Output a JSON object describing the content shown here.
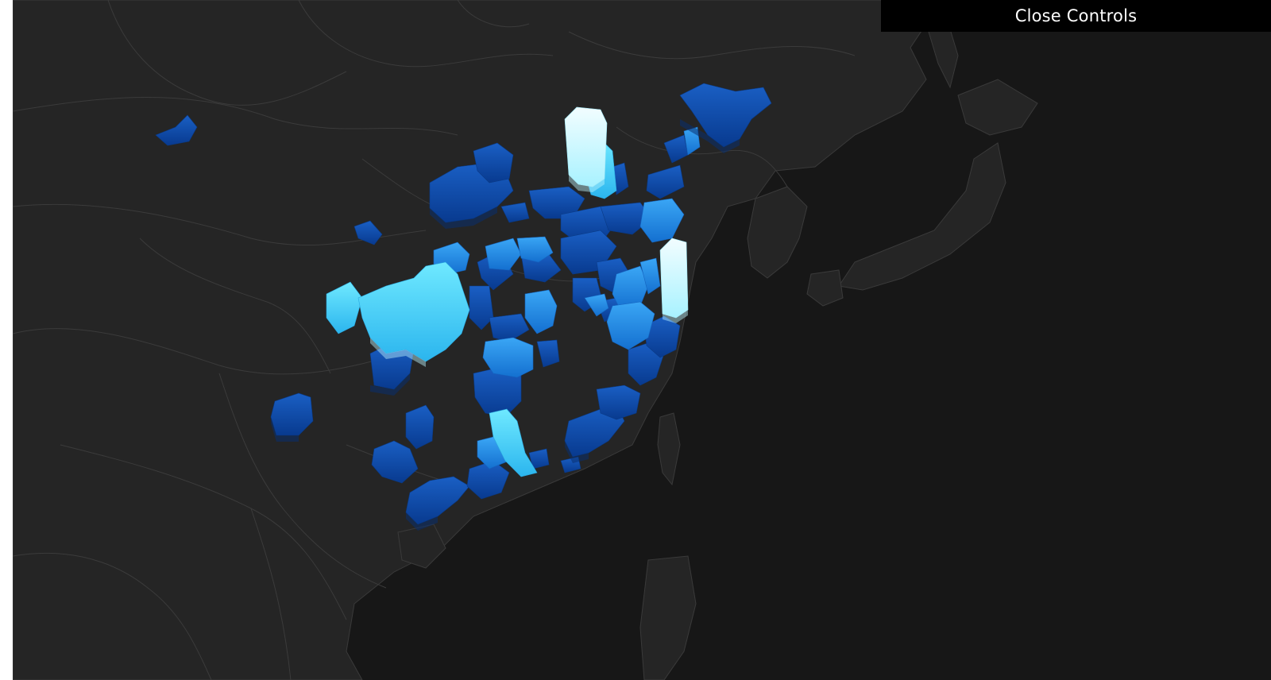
{
  "controls": {
    "close_label": "Close Controls"
  },
  "map": {
    "style": "dark basemap with 3D extruded regions",
    "colors": {
      "ocean": "#161616",
      "land": "#262626",
      "border": "#3f3f3f",
      "extrusion_low": "#0b47a8",
      "extrusion_mid": "#1f8fe8",
      "extrusion_high": "#56e6ff",
      "extrusion_peak": "#e8fbff"
    },
    "highlight_levels": [
      "low",
      "mid",
      "high",
      "peak"
    ]
  }
}
